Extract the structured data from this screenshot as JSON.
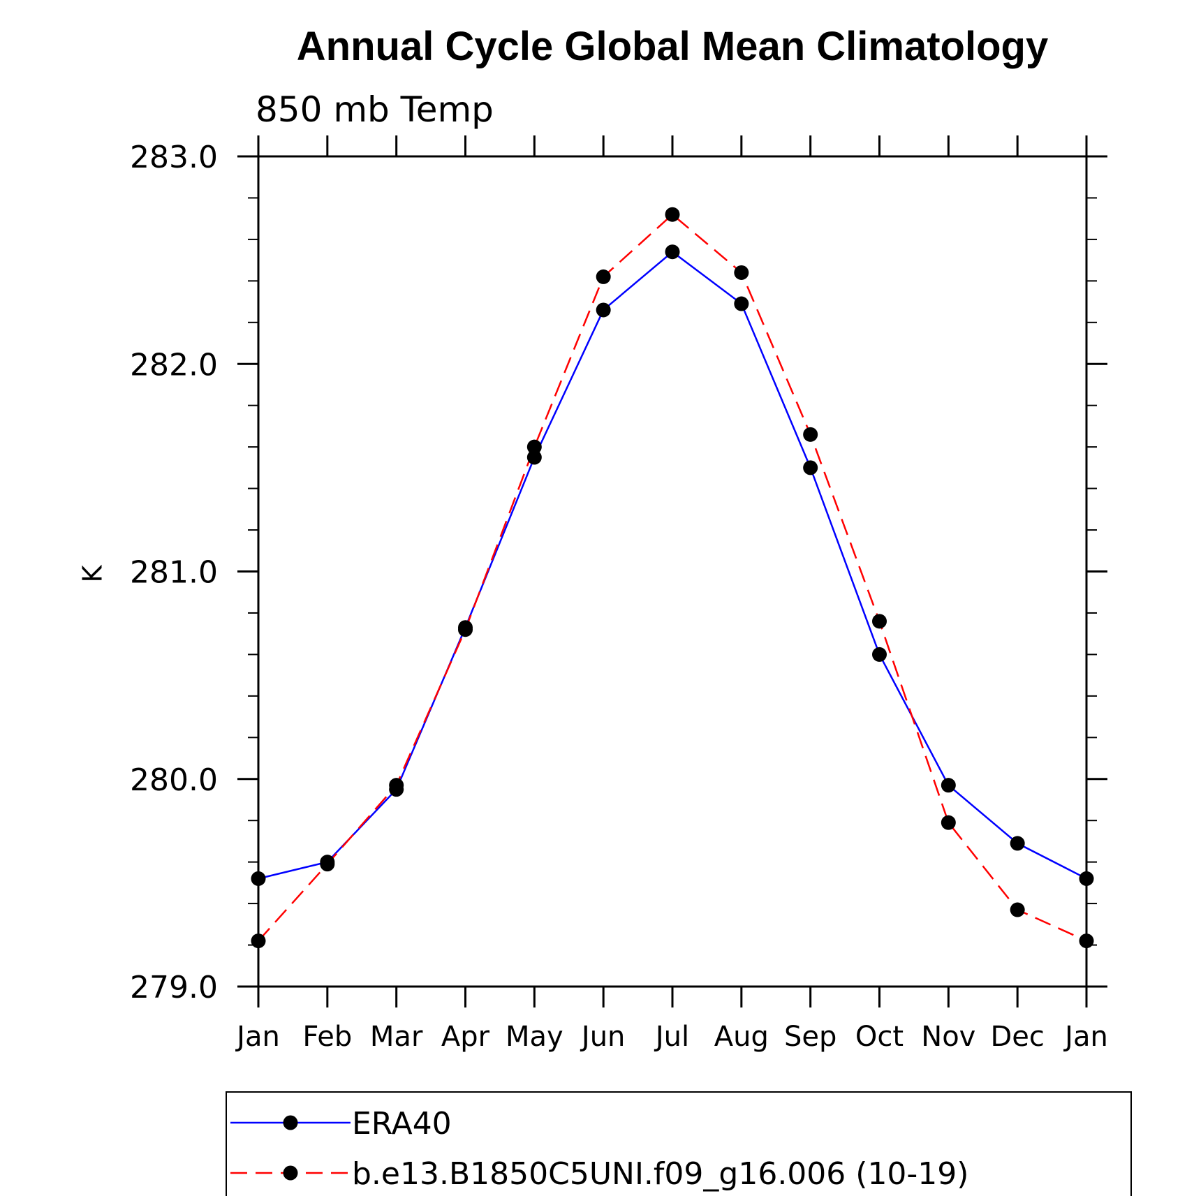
{
  "chart_data": {
    "type": "line",
    "title": "Annual Cycle Global Mean Climatology",
    "subtitle": "850 mb Temp",
    "xlabel": "",
    "ylabel": "K",
    "categories": [
      "Jan",
      "Feb",
      "Mar",
      "Apr",
      "May",
      "Jun",
      "Jul",
      "Aug",
      "Sep",
      "Oct",
      "Nov",
      "Dec",
      "Jan"
    ],
    "ylim": [
      279.0,
      283.0
    ],
    "yticks": [
      "279.0",
      "280.0",
      "281.0",
      "282.0",
      "283.0"
    ],
    "y_minor_step": 0.2,
    "grid": false,
    "legend_position": "bottom",
    "series": [
      {
        "name": "ERA40",
        "color": "#0000ff",
        "line_style": "solid",
        "marker": "filled-circle",
        "marker_color": "#000000",
        "values": [
          279.52,
          279.6,
          279.95,
          280.73,
          281.55,
          282.26,
          282.54,
          282.29,
          281.5,
          280.6,
          279.97,
          279.69,
          279.52
        ]
      },
      {
        "name": "b.e13.B1850C5UNI.f09_g16.006 (10-19)",
        "color": "#ff0000",
        "line_style": "dashed",
        "marker": "filled-circle",
        "marker_color": "#000000",
        "values": [
          279.22,
          279.59,
          279.97,
          280.72,
          281.6,
          282.42,
          282.72,
          282.44,
          281.66,
          280.76,
          279.79,
          279.37,
          279.22
        ]
      }
    ]
  }
}
